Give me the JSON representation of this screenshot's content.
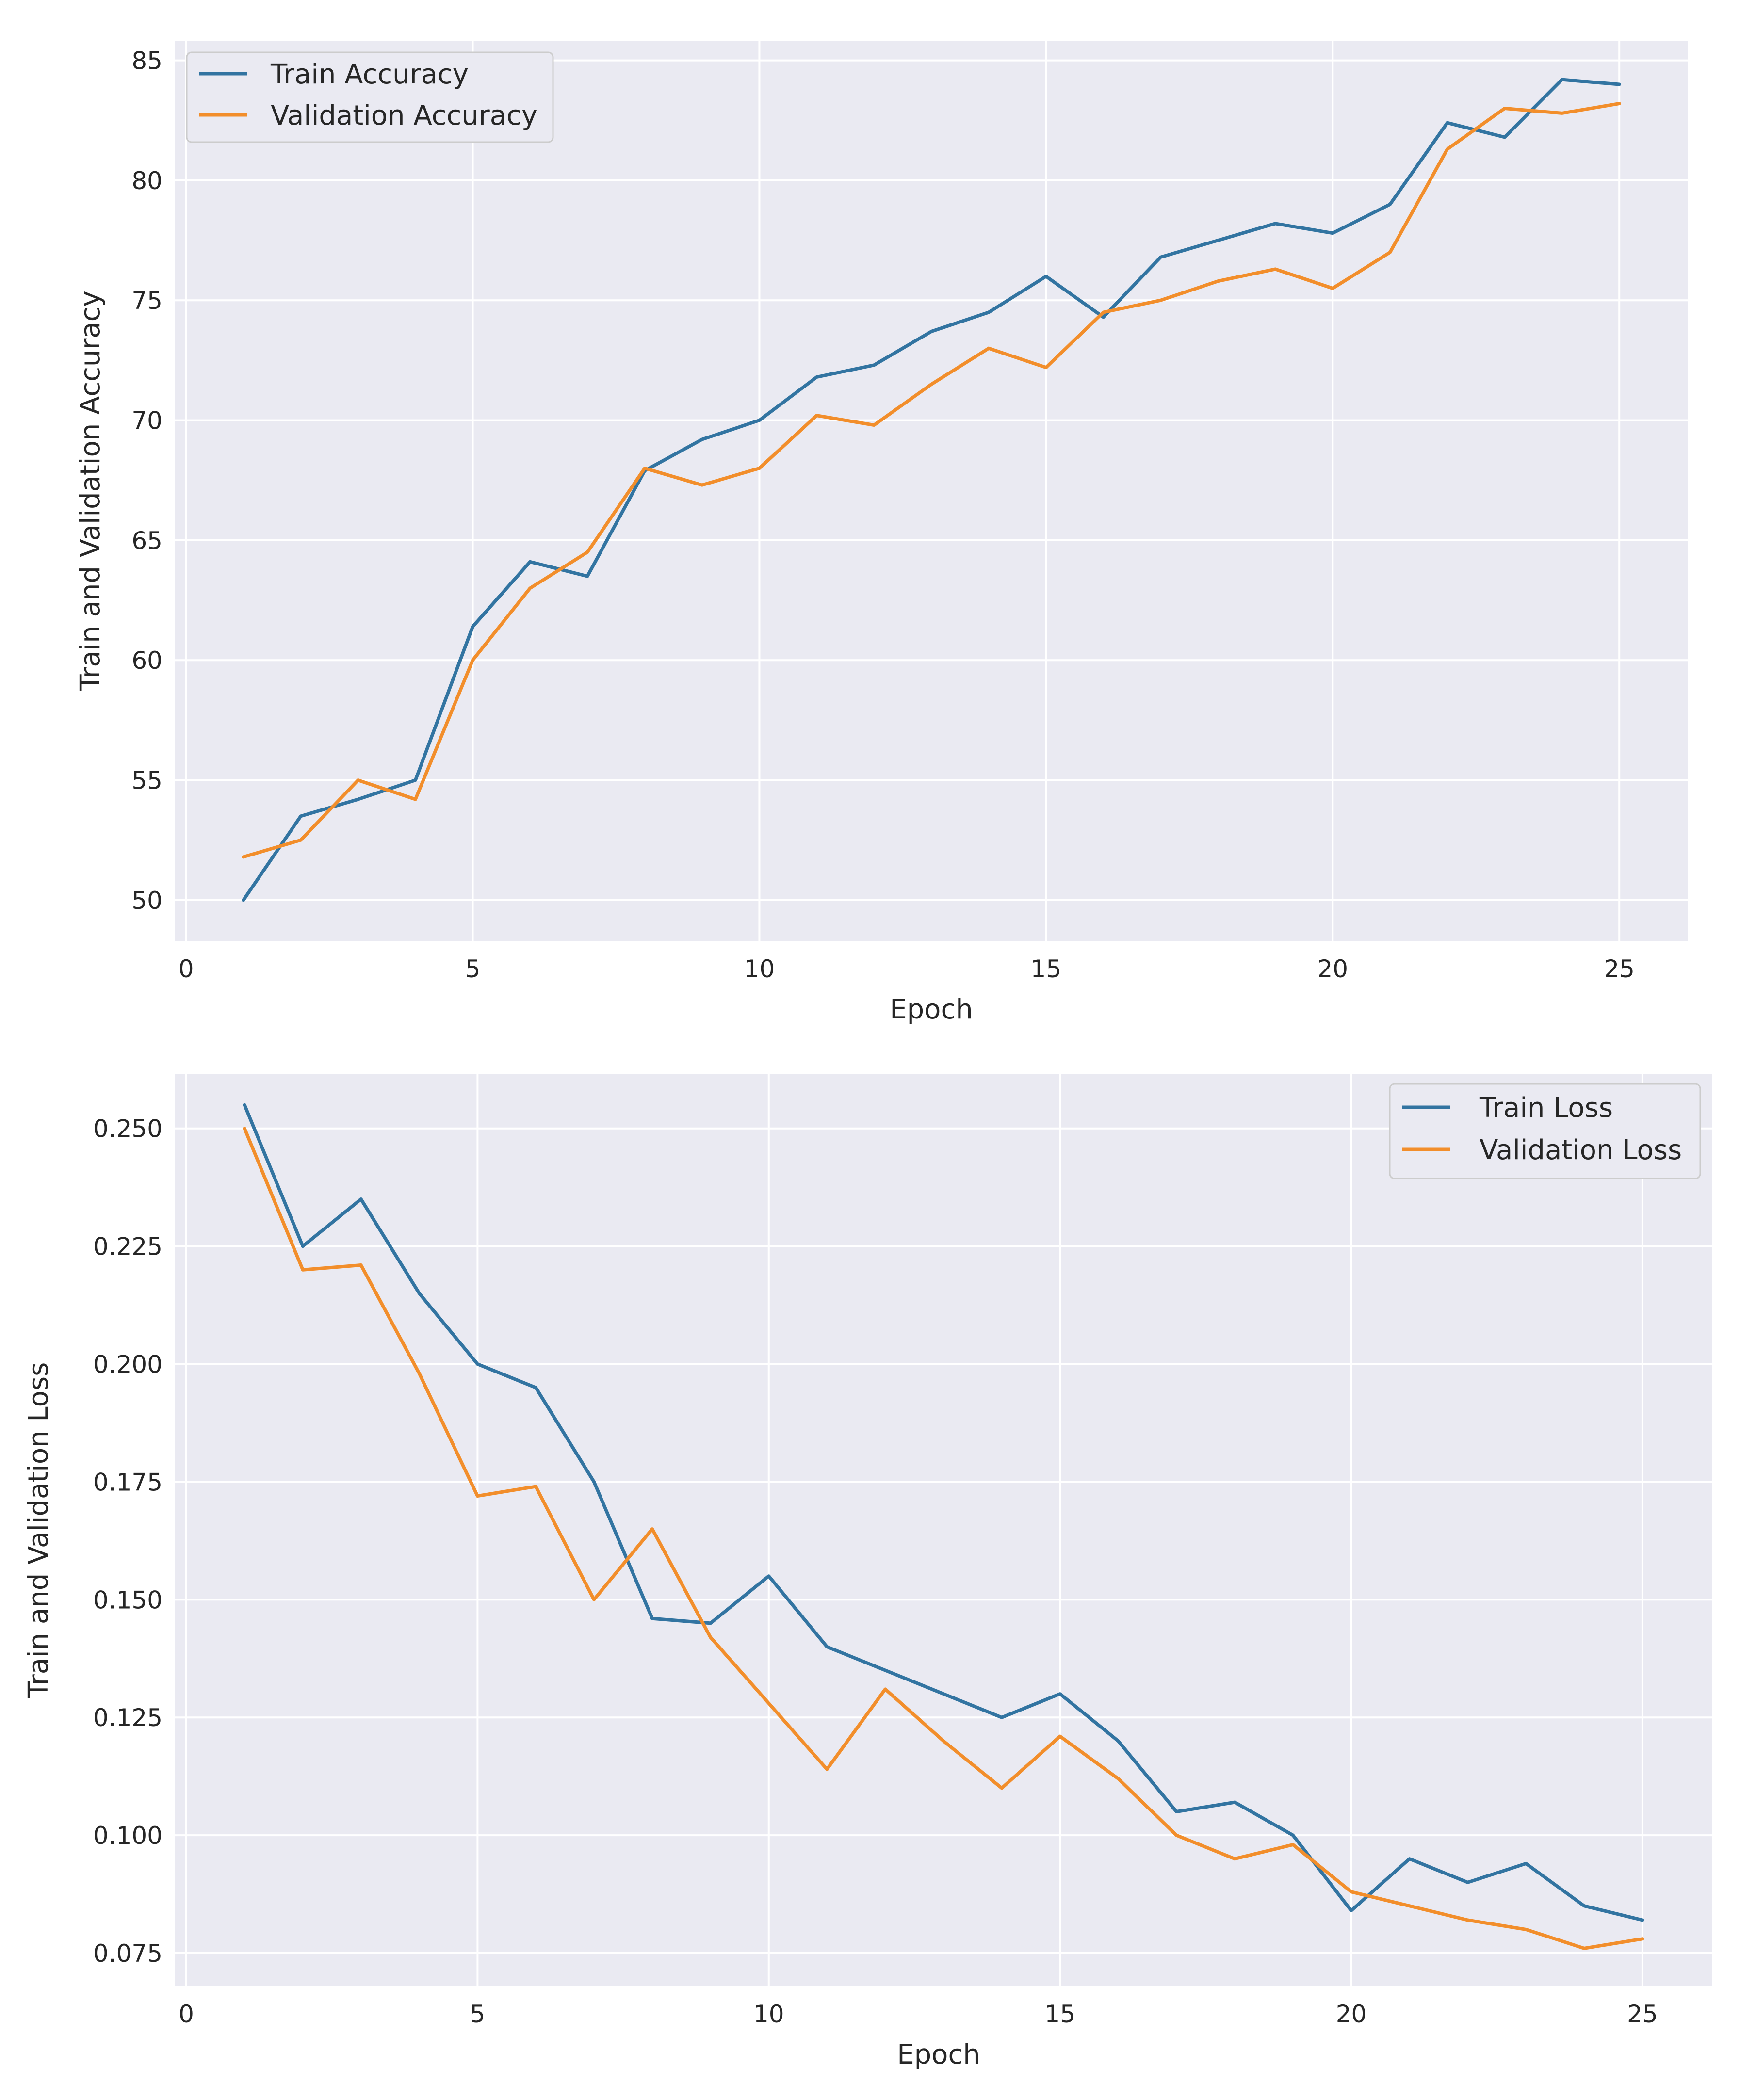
{
  "chart_data": [
    {
      "type": "line",
      "title": "",
      "xlabel": "Epoch",
      "ylabel": "Train and Validation Accuracy",
      "xlim": [
        -0.2,
        26.2
      ],
      "ylim": [
        48.3,
        85.8
      ],
      "xticks": [
        0,
        5,
        10,
        15,
        20,
        25
      ],
      "yticks": [
        50,
        55,
        60,
        65,
        70,
        75,
        80,
        85
      ],
      "ytick_labels": [
        "50",
        "55",
        "60",
        "65",
        "70",
        "75",
        "80",
        "85"
      ],
      "grid": true,
      "legend_position": "top-left",
      "x": [
        1,
        2,
        3,
        4,
        5,
        6,
        7,
        8,
        9,
        10,
        11,
        12,
        13,
        14,
        15,
        16,
        17,
        18,
        19,
        20,
        21,
        22,
        23,
        24,
        25
      ],
      "series": [
        {
          "name": "Train Accuracy",
          "color": "#3274a1",
          "values": [
            50.0,
            53.5,
            54.2,
            55.0,
            61.4,
            64.1,
            63.5,
            67.9,
            69.2,
            70.0,
            71.8,
            72.3,
            73.7,
            74.5,
            76.0,
            74.3,
            76.8,
            77.5,
            78.2,
            77.8,
            79.0,
            82.4,
            81.8,
            84.2,
            84.0
          ]
        },
        {
          "name": "Validation Accuracy",
          "color": "#f28e2b",
          "values": [
            51.8,
            52.5,
            55.0,
            54.2,
            60.0,
            63.0,
            64.5,
            68.0,
            67.3,
            68.0,
            70.2,
            69.8,
            71.5,
            73.0,
            72.2,
            74.5,
            75.0,
            75.8,
            76.3,
            75.5,
            77.0,
            81.3,
            83.0,
            82.8,
            83.2
          ]
        }
      ]
    },
    {
      "type": "line",
      "title": "",
      "xlabel": "Epoch",
      "ylabel": "Train and Validation Loss",
      "xlim": [
        -0.2,
        26.2
      ],
      "ylim": [
        0.068,
        0.2615
      ],
      "xticks": [
        0,
        5,
        10,
        15,
        20,
        25
      ],
      "yticks": [
        0.075,
        0.1,
        0.125,
        0.15,
        0.175,
        0.2,
        0.225,
        0.25
      ],
      "ytick_labels": [
        "0.075",
        "0.100",
        "0.125",
        "0.150",
        "0.175",
        "0.200",
        "0.225",
        "0.250"
      ],
      "grid": true,
      "legend_position": "top-right",
      "x": [
        1,
        2,
        3,
        4,
        5,
        6,
        7,
        8,
        9,
        10,
        11,
        12,
        13,
        14,
        15,
        16,
        17,
        18,
        19,
        20,
        21,
        22,
        23,
        24,
        25
      ],
      "series": [
        {
          "name": "Train Loss",
          "color": "#3274a1",
          "values": [
            0.255,
            0.225,
            0.235,
            0.215,
            0.2,
            0.195,
            0.175,
            0.146,
            0.145,
            0.155,
            0.14,
            0.135,
            0.13,
            0.125,
            0.13,
            0.12,
            0.105,
            0.107,
            0.1,
            0.084,
            0.095,
            0.09,
            0.094,
            0.085,
            0.082
          ]
        },
        {
          "name": "Validation Loss",
          "color": "#f28e2b",
          "values": [
            0.25,
            0.22,
            0.221,
            0.198,
            0.172,
            0.174,
            0.15,
            0.165,
            0.142,
            0.128,
            0.114,
            0.131,
            0.12,
            0.11,
            0.121,
            0.112,
            0.1,
            0.095,
            0.098,
            0.088,
            0.085,
            0.082,
            0.08,
            0.076,
            0.078
          ]
        }
      ]
    }
  ]
}
